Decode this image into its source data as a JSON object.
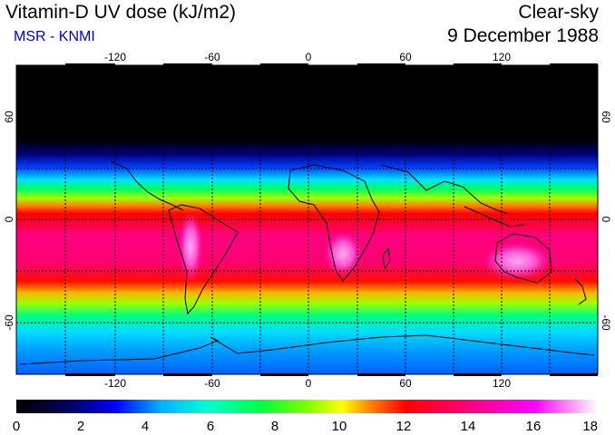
{
  "header": {
    "title": "Vitamin-D UV dose (kJ/m2)",
    "source": "MSR - KNMI",
    "condition": "Clear-sky",
    "date": "9 December 1988"
  },
  "map": {
    "projection": "equirectangular",
    "lon_range": [
      -180,
      180
    ],
    "lat_range": [
      -90,
      90
    ],
    "lon_ticks": [
      "-120",
      "-60",
      "0",
      "60",
      "120"
    ],
    "lat_ticks_left": [
      "60",
      "0",
      "-60"
    ],
    "lat_ticks_right": [
      "60",
      "0",
      "-60"
    ]
  },
  "colorbar": {
    "min": 0,
    "max": 18,
    "labels": [
      "0",
      "2",
      "4",
      "6",
      "8",
      "10",
      "12",
      "14",
      "16",
      "18"
    ],
    "stops": [
      "#000000",
      "#000060",
      "#0000ff",
      "#00b4ff",
      "#00ffd0",
      "#00ff40",
      "#80ff00",
      "#ffff00",
      "#ff8000",
      "#ff0000",
      "#ff0080",
      "#ff00ff",
      "#ffffff"
    ]
  },
  "colors": {
    "title": "#000000",
    "source": "#0000cc"
  }
}
